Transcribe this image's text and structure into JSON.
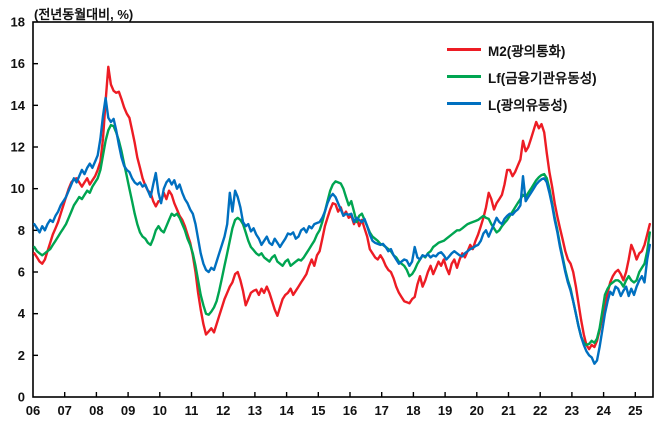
{
  "chart_data": {
    "type": "line",
    "unit_label": "(전년동월대비, %)",
    "x_start_year": 2006,
    "x_frequency": "monthly",
    "x_tick_labels": [
      "06",
      "07",
      "08",
      "09",
      "10",
      "11",
      "12",
      "13",
      "14",
      "15",
      "16",
      "17",
      "18",
      "19",
      "20",
      "21",
      "22",
      "23",
      "24",
      "25"
    ],
    "y_ticks": [
      0,
      2,
      4,
      6,
      8,
      10,
      12,
      14,
      16,
      18
    ],
    "ylim": [
      0,
      18
    ],
    "grid": false,
    "legend_position": "top-right-inside",
    "series": [
      {
        "name": "M2(광의통화)",
        "color": "#ed1c24",
        "values": [
          6.9,
          6.7,
          6.5,
          6.4,
          6.6,
          7.0,
          7.4,
          7.8,
          8.1,
          8.4,
          8.8,
          9.2,
          9.6,
          10.0,
          10.3,
          10.45,
          10.5,
          10.3,
          10.1,
          10.3,
          10.5,
          10.2,
          10.4,
          10.6,
          10.9,
          11.3,
          12.4,
          14.2,
          15.85,
          15.0,
          14.7,
          14.6,
          14.65,
          14.3,
          13.9,
          13.6,
          13.4,
          12.8,
          12.2,
          11.5,
          11.0,
          10.5,
          10.15,
          9.9,
          9.8,
          9.4,
          9.15,
          9.4,
          9.4,
          9.8,
          9.5,
          9.9,
          9.7,
          9.3,
          9.0,
          8.7,
          8.5,
          8.2,
          7.8,
          7.4,
          6.8,
          6.0,
          5.0,
          4.2,
          3.5,
          3.0,
          3.15,
          3.3,
          3.1,
          3.5,
          3.9,
          4.3,
          4.7,
          5.0,
          5.3,
          5.5,
          5.9,
          6.0,
          5.6,
          5.1,
          4.4,
          4.7,
          5.0,
          5.1,
          5.15,
          4.9,
          5.2,
          5.0,
          5.3,
          5.0,
          4.6,
          4.2,
          3.9,
          4.3,
          4.7,
          4.9,
          5.0,
          5.2,
          4.9,
          5.1,
          5.3,
          5.5,
          5.7,
          5.9,
          6.3,
          6.6,
          6.3,
          6.8,
          7.0,
          7.6,
          8.2,
          8.6,
          9.0,
          9.3,
          9.25,
          8.9,
          9.1,
          8.7,
          8.9,
          8.6,
          8.7,
          8.3,
          8.6,
          8.2,
          8.5,
          8.1,
          7.7,
          7.1,
          6.9,
          6.7,
          6.6,
          6.8,
          6.6,
          6.3,
          6.1,
          6.0,
          5.7,
          5.3,
          5.0,
          4.8,
          4.6,
          4.55,
          4.5,
          4.7,
          4.8,
          5.4,
          5.8,
          5.3,
          5.6,
          6.0,
          6.3,
          5.9,
          6.2,
          6.5,
          6.3,
          6.6,
          6.2,
          5.9,
          6.4,
          6.6,
          6.2,
          6.6,
          6.9,
          6.7,
          7.0,
          7.3,
          7.1,
          7.5,
          7.8,
          8.2,
          8.6,
          9.1,
          9.8,
          9.5,
          9.0,
          9.3,
          9.5,
          9.7,
          10.2,
          10.9,
          10.9,
          10.6,
          10.8,
          11.1,
          11.4,
          12.3,
          11.8,
          12.0,
          12.4,
          12.8,
          13.2,
          12.9,
          13.1,
          12.7,
          11.7,
          10.8,
          10.1,
          9.3,
          8.65,
          8.1,
          7.55,
          7.0,
          6.6,
          6.4,
          6.0,
          5.3,
          4.5,
          3.7,
          3.0,
          2.5,
          2.3,
          2.5,
          2.4,
          2.7,
          3.2,
          3.8,
          4.3,
          5.0,
          5.5,
          5.8,
          6.0,
          6.1,
          5.9,
          5.6,
          6.0,
          6.6,
          7.3,
          7.0,
          6.6,
          6.9,
          7.0,
          7.3,
          7.8,
          8.3
        ]
      },
      {
        "name": "Lf(금융기관유동성)",
        "color": "#00a551",
        "values": [
          7.2,
          7.0,
          6.9,
          6.8,
          6.9,
          7.0,
          7.1,
          7.3,
          7.5,
          7.7,
          7.9,
          8.1,
          8.3,
          8.6,
          8.9,
          9.2,
          9.4,
          9.6,
          9.5,
          9.7,
          9.9,
          9.8,
          10.1,
          10.3,
          10.5,
          10.9,
          11.6,
          12.3,
          12.8,
          13.05,
          13.0,
          12.7,
          12.3,
          11.8,
          11.2,
          10.6,
          10.0,
          9.4,
          8.8,
          8.3,
          7.9,
          7.7,
          7.6,
          7.4,
          7.3,
          7.6,
          8.0,
          8.2,
          8.0,
          7.9,
          8.2,
          8.5,
          8.8,
          8.7,
          8.8,
          8.6,
          8.3,
          8.0,
          7.6,
          7.3,
          6.9,
          6.3,
          5.6,
          4.9,
          4.4,
          4.0,
          3.95,
          4.1,
          4.3,
          4.6,
          5.1,
          5.7,
          6.3,
          6.9,
          7.5,
          8.1,
          8.5,
          8.6,
          8.5,
          8.3,
          7.9,
          7.5,
          7.2,
          7.05,
          6.9,
          6.8,
          6.9,
          6.7,
          6.6,
          6.5,
          6.7,
          6.8,
          6.5,
          6.4,
          6.3,
          6.5,
          6.6,
          6.3,
          6.4,
          6.5,
          6.6,
          6.55,
          6.7,
          6.9,
          7.1,
          7.3,
          7.5,
          7.8,
          8.0,
          8.4,
          8.9,
          9.4,
          9.9,
          10.2,
          10.35,
          10.3,
          10.25,
          10.0,
          9.6,
          9.2,
          9.4,
          8.9,
          8.4,
          8.7,
          8.8,
          8.5,
          8.2,
          7.9,
          7.7,
          7.6,
          7.5,
          7.35,
          7.3,
          7.2,
          7.1,
          7.0,
          6.8,
          6.7,
          6.5,
          6.4,
          6.3,
          6.1,
          5.8,
          5.9,
          6.1,
          6.4,
          6.6,
          6.8,
          6.7,
          6.9,
          7.0,
          7.2,
          7.3,
          7.4,
          7.45,
          7.5,
          7.6,
          7.7,
          7.8,
          7.9,
          8.0,
          8.0,
          8.1,
          8.2,
          8.3,
          8.35,
          8.4,
          8.45,
          8.5,
          8.6,
          8.7,
          8.6,
          8.55,
          8.3,
          8.1,
          7.9,
          8.0,
          8.2,
          8.35,
          8.5,
          8.7,
          8.9,
          9.1,
          9.3,
          9.5,
          9.7,
          9.6,
          9.8,
          10.0,
          10.2,
          10.4,
          10.55,
          10.65,
          10.7,
          10.5,
          10.0,
          9.3,
          8.6,
          8.0,
          7.3,
          6.7,
          6.1,
          5.6,
          5.2,
          4.6,
          4.0,
          3.4,
          2.9,
          2.6,
          2.5,
          2.55,
          2.7,
          2.6,
          2.8,
          3.3,
          4.1,
          4.9,
          5.2,
          5.4,
          5.5,
          5.6,
          5.6,
          5.5,
          5.3,
          5.6,
          5.8,
          5.6,
          5.5,
          5.6,
          6.0,
          6.2,
          6.4,
          7.0,
          7.9
        ]
      },
      {
        "name": "L(광의유동성)",
        "color": "#0070c0",
        "values": [
          8.3,
          8.1,
          7.9,
          8.2,
          8.0,
          8.3,
          8.5,
          8.4,
          8.7,
          8.9,
          9.2,
          9.4,
          9.6,
          9.9,
          10.2,
          10.5,
          10.3,
          10.6,
          10.9,
          10.7,
          11.0,
          11.2,
          11.0,
          11.3,
          11.6,
          12.4,
          13.5,
          14.35,
          13.4,
          13.2,
          13.35,
          12.8,
          12.1,
          11.5,
          11.1,
          10.9,
          10.8,
          10.5,
          10.3,
          10.2,
          10.3,
          10.1,
          10.2,
          9.9,
          9.6,
          10.2,
          10.75,
          9.8,
          9.3,
          10.0,
          10.3,
          10.45,
          10.2,
          10.4,
          10.0,
          10.2,
          9.8,
          9.5,
          9.3,
          9.0,
          8.8,
          8.3,
          7.6,
          6.9,
          6.4,
          6.1,
          6.0,
          6.2,
          6.1,
          6.5,
          6.9,
          7.3,
          7.7,
          8.3,
          9.8,
          8.9,
          9.9,
          9.6,
          9.1,
          8.4,
          8.2,
          8.3,
          7.95,
          8.1,
          7.8,
          7.6,
          7.3,
          7.5,
          7.7,
          7.4,
          7.3,
          7.6,
          7.4,
          7.2,
          7.4,
          7.6,
          7.85,
          7.8,
          7.9,
          7.6,
          7.7,
          8.0,
          8.1,
          7.9,
          8.2,
          8.1,
          8.3,
          8.35,
          8.4,
          8.6,
          8.9,
          9.3,
          9.6,
          9.75,
          9.6,
          9.3,
          9.0,
          8.7,
          8.8,
          8.75,
          8.8,
          8.4,
          8.6,
          8.5,
          8.4,
          8.55,
          8.2,
          7.8,
          7.5,
          7.4,
          7.35,
          7.3,
          7.35,
          7.2,
          7.0,
          7.1,
          6.8,
          6.6,
          6.4,
          6.5,
          6.6,
          6.55,
          6.3,
          6.5,
          7.2,
          6.7,
          6.6,
          6.8,
          6.75,
          6.85,
          6.7,
          6.8,
          6.75,
          6.9,
          6.95,
          6.8,
          6.6,
          6.75,
          6.9,
          7.0,
          6.9,
          6.8,
          6.75,
          6.9,
          7.0,
          7.1,
          7.15,
          7.25,
          7.3,
          7.5,
          7.85,
          8.0,
          7.7,
          8.0,
          8.3,
          8.6,
          8.4,
          8.3,
          8.55,
          8.7,
          8.8,
          8.75,
          8.9,
          9.0,
          9.2,
          10.6,
          9.4,
          9.6,
          9.8,
          10.0,
          10.2,
          10.35,
          10.45,
          10.5,
          10.3,
          9.8,
          9.2,
          8.5,
          7.9,
          7.2,
          6.6,
          6.0,
          5.5,
          5.1,
          4.6,
          4.0,
          3.4,
          2.9,
          2.5,
          2.2,
          2.0,
          1.9,
          1.6,
          1.75,
          2.4,
          3.2,
          4.0,
          4.6,
          5.05,
          4.9,
          5.3,
          5.2,
          4.85,
          5.1,
          5.3,
          4.85,
          5.2,
          4.9,
          5.3,
          5.6,
          5.8,
          5.5,
          6.6,
          7.3
        ]
      }
    ]
  }
}
